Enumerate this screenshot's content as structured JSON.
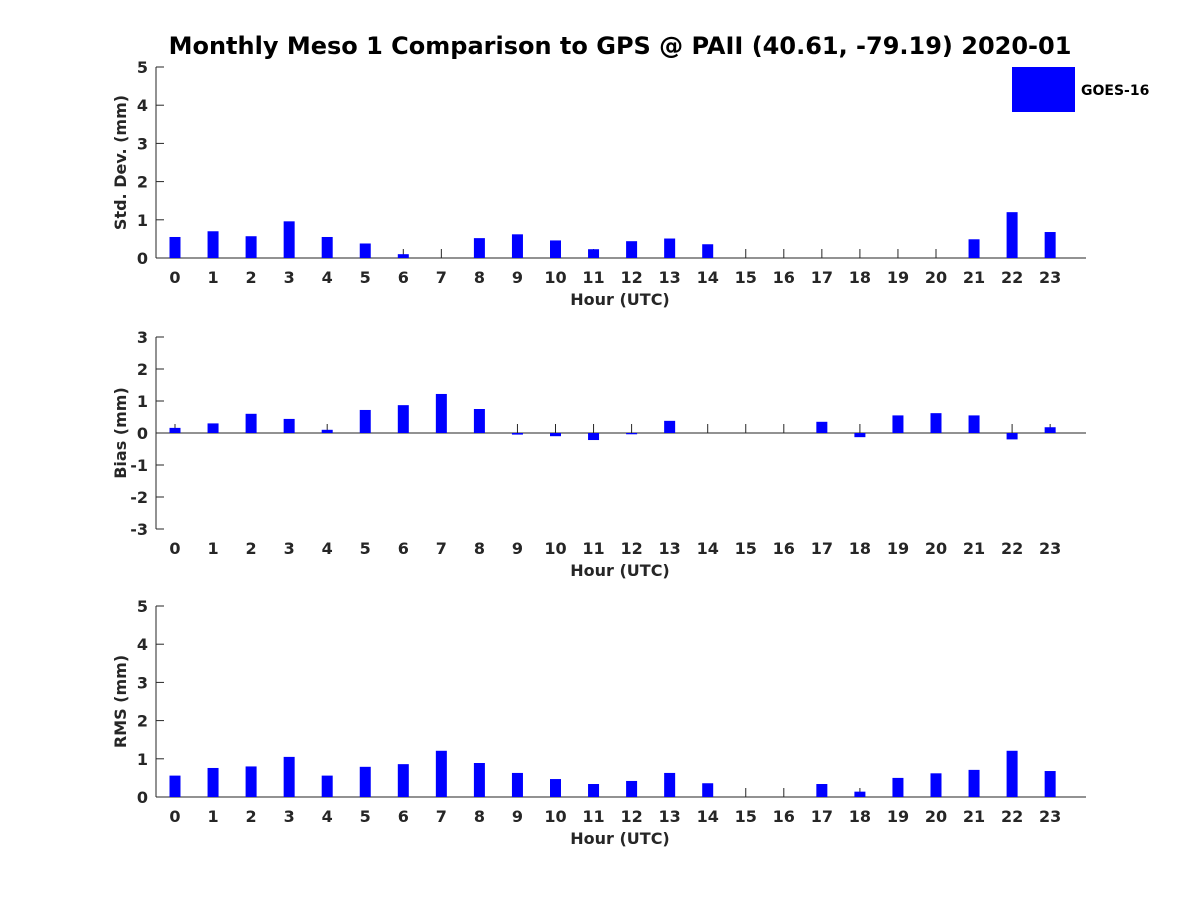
{
  "title": "Monthly Meso 1 Comparison to GPS @ PAII (40.61, -79.19) 2020-01",
  "legend": {
    "label": "GOES-16",
    "color": "#0000ff"
  },
  "chart_data": [
    {
      "type": "bar",
      "ylabel": "Std. Dev. (mm)",
      "xlabel": "Hour (UTC)",
      "ylim": [
        0,
        5
      ],
      "yticks": [
        "0",
        "1",
        "2",
        "3",
        "4",
        "5"
      ],
      "categories": [
        "0",
        "1",
        "2",
        "3",
        "4",
        "5",
        "6",
        "7",
        "8",
        "9",
        "10",
        "11",
        "12",
        "13",
        "14",
        "15",
        "16",
        "17",
        "18",
        "19",
        "20",
        "21",
        "22",
        "23"
      ],
      "series": [
        {
          "name": "GOES-16",
          "values": [
            0.55,
            0.7,
            0.57,
            0.96,
            0.55,
            0.38,
            0.1,
            0.0,
            0.52,
            0.62,
            0.46,
            0.23,
            0.44,
            0.51,
            0.36,
            0.0,
            0.0,
            0.0,
            0.0,
            0.0,
            0.0,
            0.49,
            1.2,
            0.68
          ]
        }
      ]
    },
    {
      "type": "bar",
      "ylabel": "Bias (mm)",
      "xlabel": "Hour (UTC)",
      "ylim": [
        -3,
        3
      ],
      "yticks": [
        "-3",
        "-2",
        "-1",
        "0",
        "1",
        "2",
        "3"
      ],
      "categories": [
        "0",
        "1",
        "2",
        "3",
        "4",
        "5",
        "6",
        "7",
        "8",
        "9",
        "10",
        "11",
        "12",
        "13",
        "14",
        "15",
        "16",
        "17",
        "18",
        "19",
        "20",
        "21",
        "22",
        "23"
      ],
      "series": [
        {
          "name": "GOES-16",
          "values": [
            0.16,
            0.3,
            0.6,
            0.44,
            0.1,
            0.72,
            0.87,
            1.22,
            0.75,
            -0.05,
            -0.1,
            -0.22,
            -0.04,
            0.38,
            0.0,
            0.0,
            0.0,
            0.35,
            -0.13,
            0.55,
            0.62,
            0.55,
            -0.2,
            0.18
          ]
        }
      ]
    },
    {
      "type": "bar",
      "ylabel": "RMS (mm)",
      "xlabel": "Hour (UTC)",
      "ylim": [
        0,
        5
      ],
      "yticks": [
        "0",
        "1",
        "2",
        "3",
        "4",
        "5"
      ],
      "categories": [
        "0",
        "1",
        "2",
        "3",
        "4",
        "5",
        "6",
        "7",
        "8",
        "9",
        "10",
        "11",
        "12",
        "13",
        "14",
        "15",
        "16",
        "17",
        "18",
        "19",
        "20",
        "21",
        "22",
        "23"
      ],
      "series": [
        {
          "name": "GOES-16",
          "values": [
            0.56,
            0.76,
            0.8,
            1.05,
            0.56,
            0.79,
            0.86,
            1.21,
            0.89,
            0.63,
            0.47,
            0.34,
            0.42,
            0.63,
            0.36,
            0.0,
            0.0,
            0.34,
            0.14,
            0.5,
            0.62,
            0.71,
            1.21,
            0.68
          ]
        }
      ]
    }
  ]
}
